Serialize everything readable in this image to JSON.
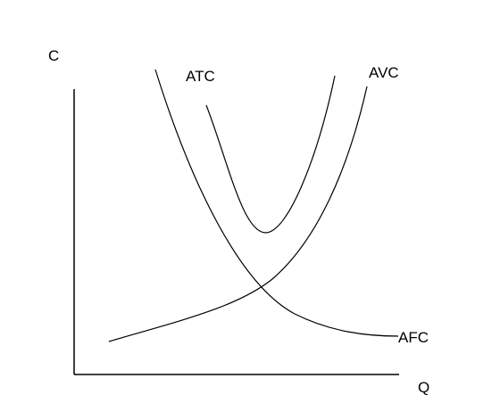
{
  "axes": {
    "y_label": "C",
    "x_label": "Q"
  },
  "curves": [
    {
      "label": "ATC"
    },
    {
      "label": "AVC"
    },
    {
      "label": "AFC"
    }
  ]
}
